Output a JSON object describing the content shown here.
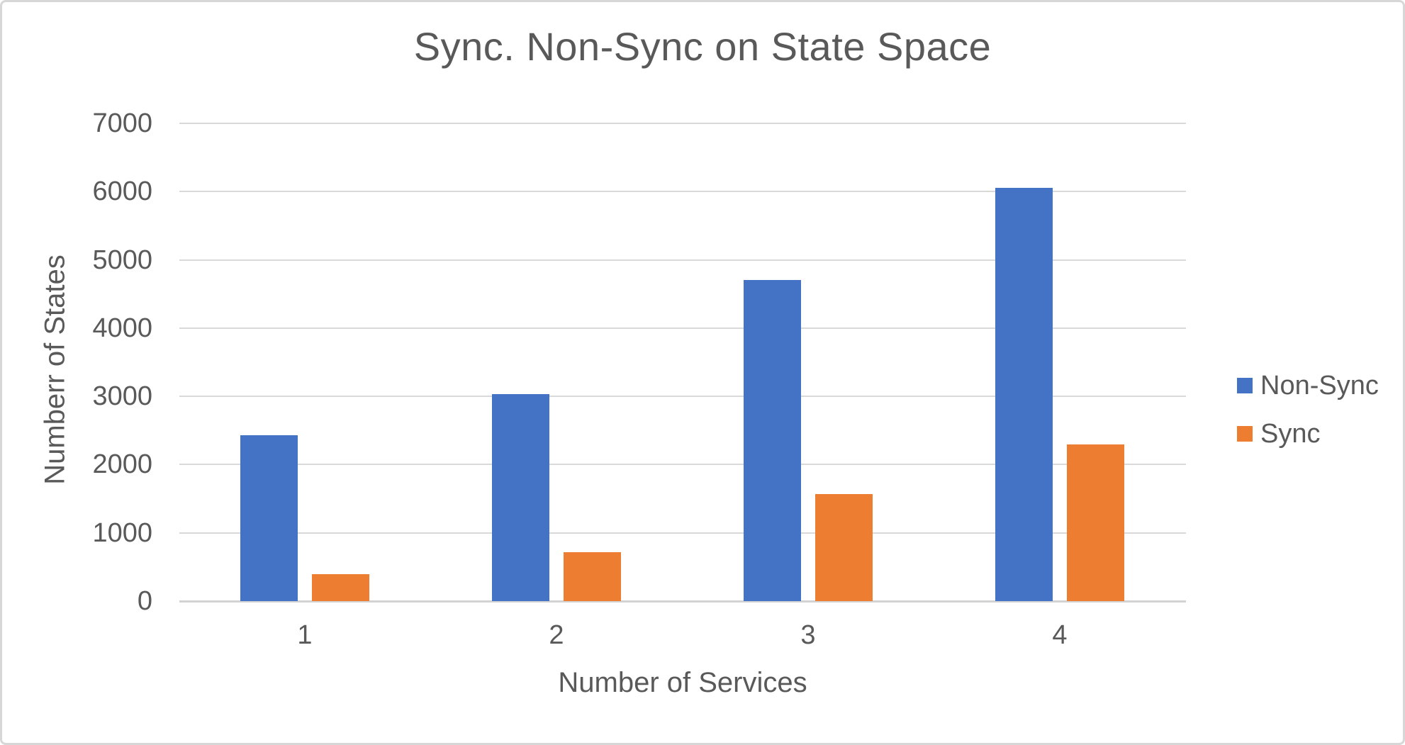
{
  "chart_data": {
    "type": "bar",
    "title": "Sync. Non-Sync on State Space",
    "xlabel": "Number of Services",
    "ylabel": "Numberr of States",
    "categories": [
      "1",
      "2",
      "3",
      "4"
    ],
    "series": [
      {
        "name": "Non-Sync",
        "color": "#4472C4",
        "values": [
          2430,
          3030,
          4700,
          6050
        ]
      },
      {
        "name": "Sync",
        "color": "#ED7D31",
        "values": [
          390,
          720,
          1570,
          2300
        ]
      }
    ],
    "ylim": [
      0,
      7000
    ],
    "ytick_step": 1000,
    "ytick_labels": [
      "0",
      "1000",
      "2000",
      "3000",
      "4000",
      "5000",
      "6000",
      "7000"
    ],
    "grid": true,
    "legend_position": "right",
    "legend_entries": [
      "Non-Sync",
      "Sync"
    ]
  },
  "colors": {
    "text": "#595959",
    "gridline": "#D9D9D9",
    "baseline": "#D2D2D2",
    "frame_border": "#D7D7D7",
    "background": "#FFFFFF",
    "series_non_sync": "#4472C4",
    "series_sync": "#ED7D31"
  }
}
